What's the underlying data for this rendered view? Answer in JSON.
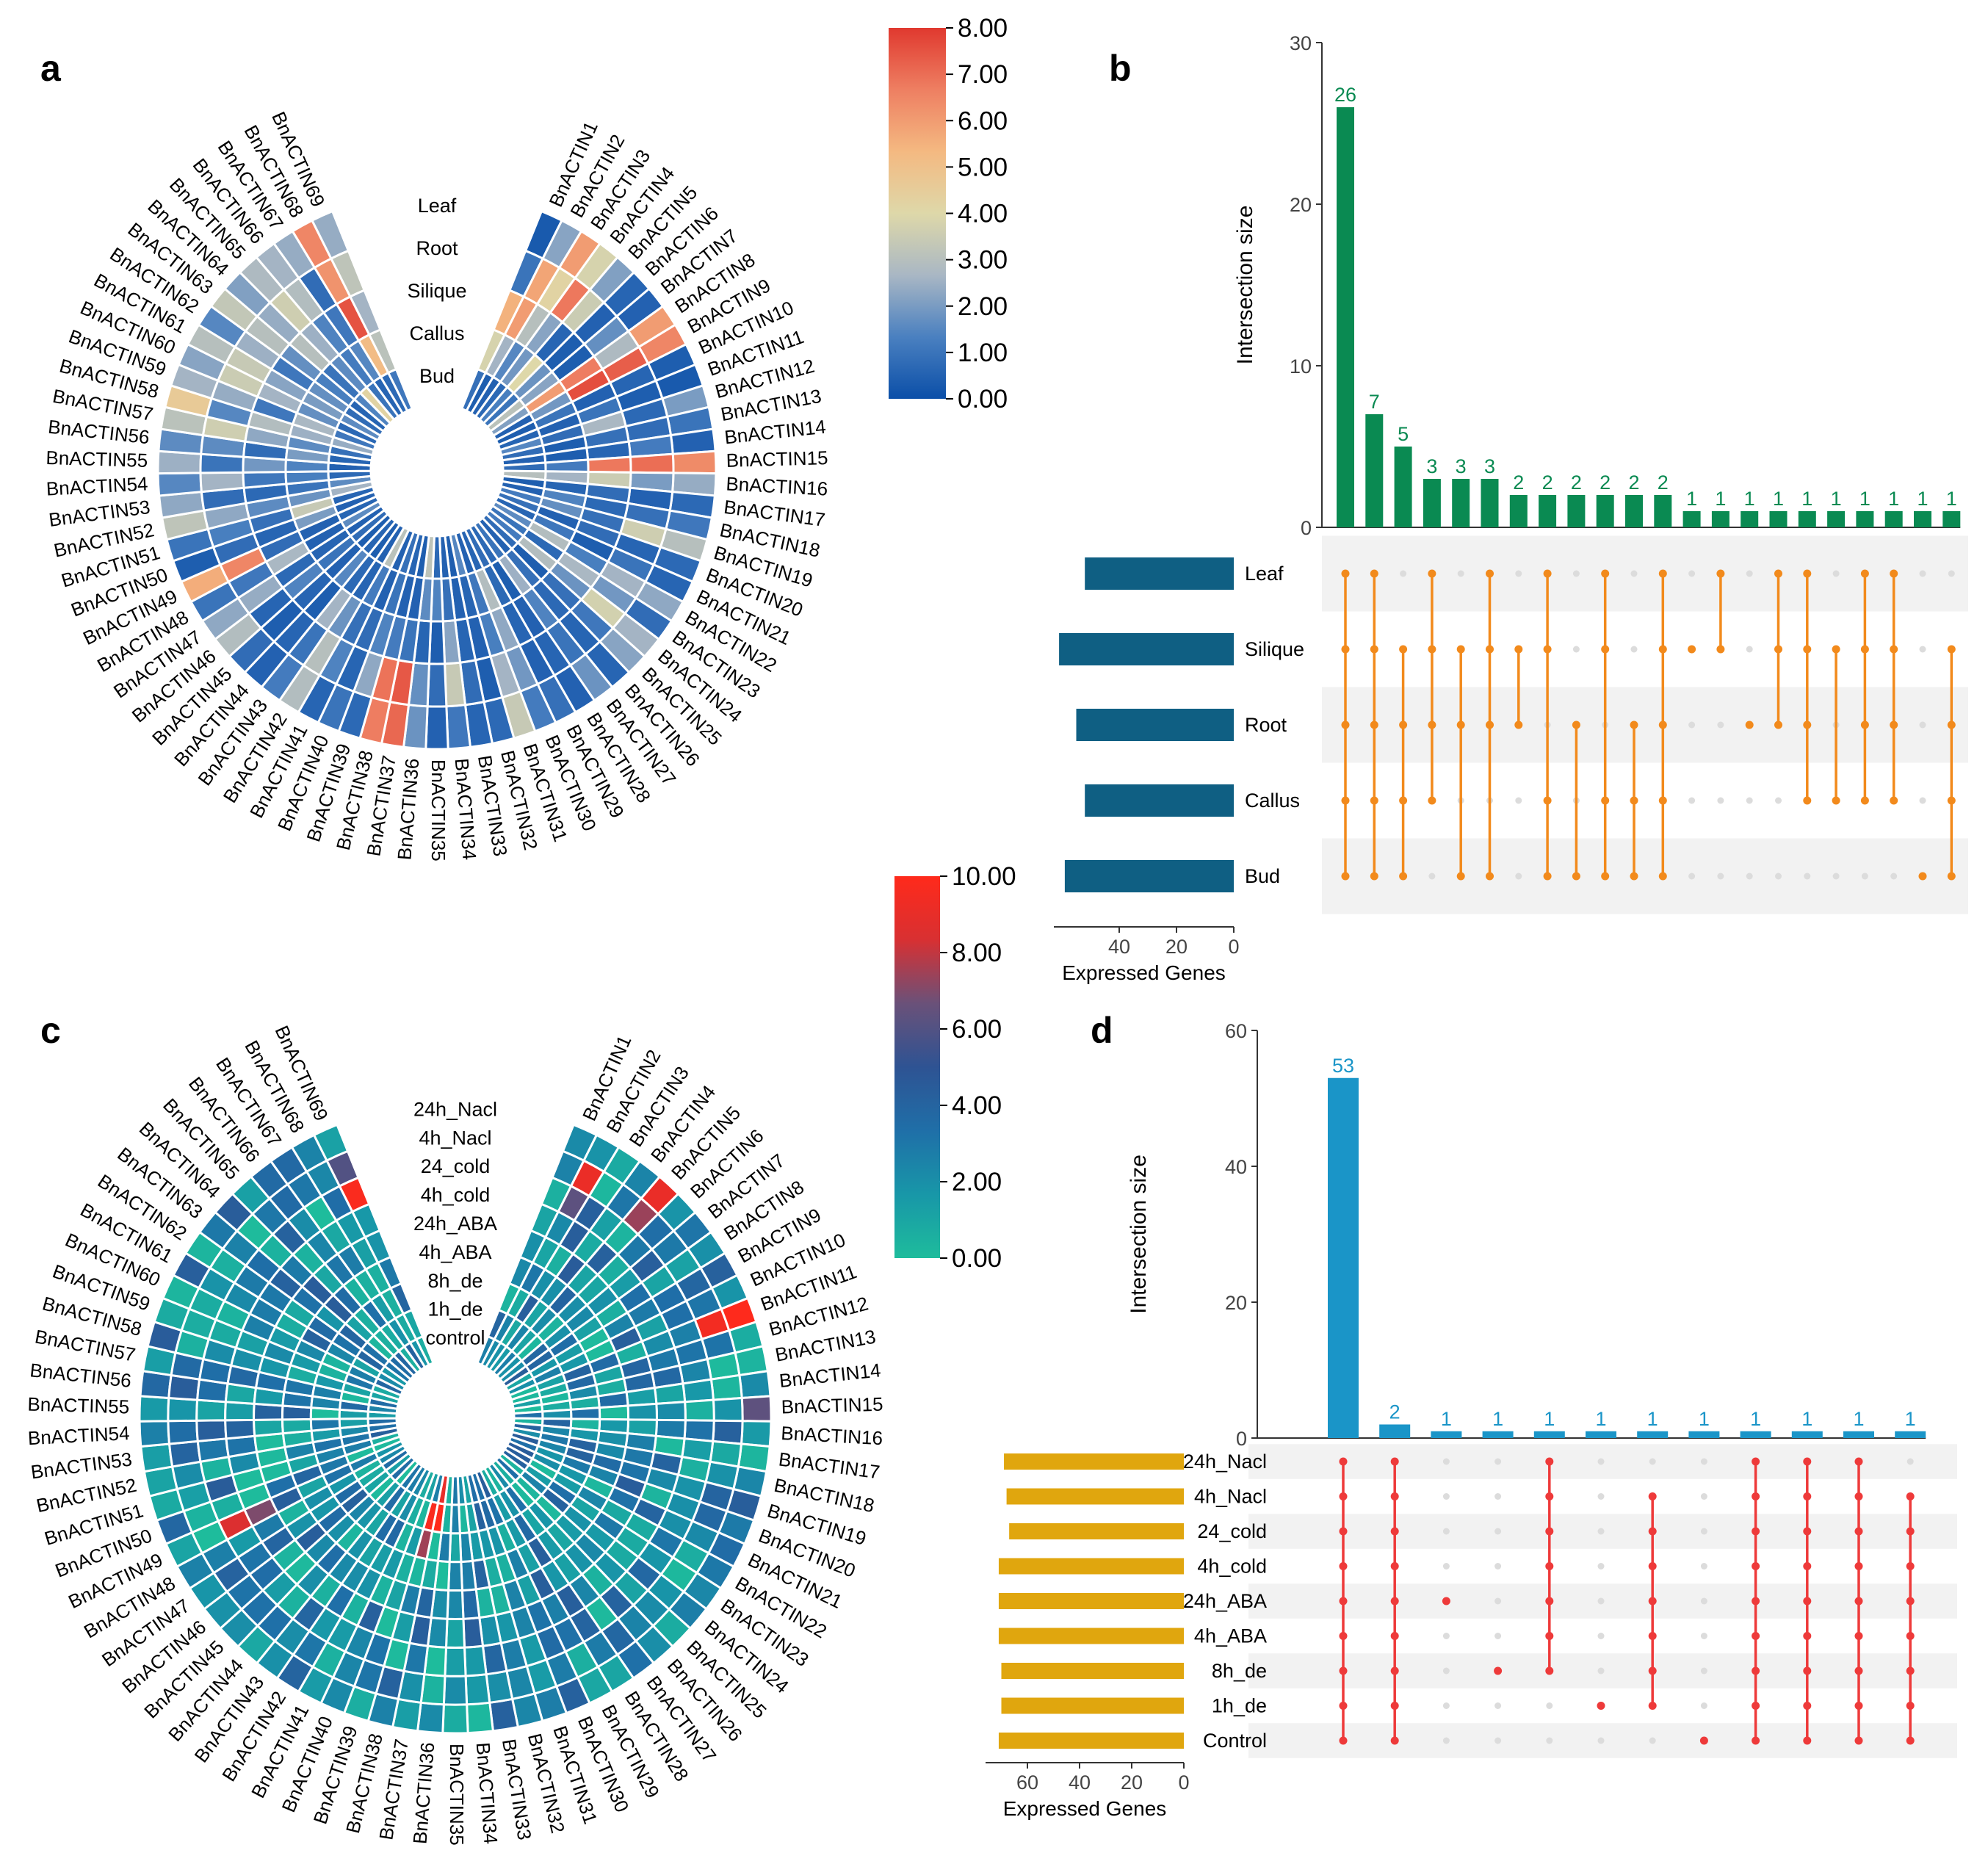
{
  "panel_letters": {
    "a": "a",
    "b": "b",
    "c": "c",
    "d": "d"
  },
  "chart_data": [
    {
      "panel": "a",
      "type": "heatmap",
      "layout": "circular",
      "title": "",
      "rows": [
        "Leaf",
        "Root",
        "Silique",
        "Callus",
        "Bud"
      ],
      "genes": [
        "BnACTIN1",
        "BnACTIN2",
        "BnACTIN3",
        "BnACTIN4",
        "BnACTIN5",
        "BnACTIN6",
        "BnACTIN7",
        "BnACTIN8",
        "BnACTIN9",
        "BnACTIN10",
        "BnACTIN11",
        "BnACTIN12",
        "BnACTIN13",
        "BnACTIN14",
        "BnACTIN15",
        "BnACTIN16",
        "BnACTIN17",
        "BnACTIN18",
        "BnACTIN19",
        "BnACTIN20",
        "BnACTIN21",
        "BnACTIN22",
        "BnACTIN23",
        "BnACTIN24",
        "BnACTIN25",
        "BnACTIN26",
        "BnACTIN27",
        "BnACTIN28",
        "BnACTIN29",
        "BnACTIN30",
        "BnACTIN31",
        "BnACTIN32",
        "BnACTIN33",
        "BnACTIN34",
        "BnACTIN35",
        "BnACTIN36",
        "BnACTIN37",
        "BnACTIN38",
        "BnACTIN39",
        "BnACTIN40",
        "BnACTIN41",
        "BnACTIN42",
        "BnACTIN43",
        "BnACTIN44",
        "BnACTIN45",
        "BnACTIN46",
        "BnACTIN47",
        "BnACTIN48",
        "BnACTIN49",
        "BnACTIN50",
        "BnACTIN51",
        "BnACTIN52",
        "BnACTIN53",
        "BnACTIN54",
        "BnACTIN55",
        "BnACTIN56",
        "BnACTIN57",
        "BnACTIN58",
        "BnACTIN59",
        "BnACTIN60",
        "BnACTIN61",
        "BnACTIN62",
        "BnACTIN63",
        "BnACTIN64",
        "BnACTIN65",
        "BnACTIN66",
        "BnACTIN67",
        "BnACTIN68",
        "BnACTIN69"
      ],
      "colorbar": {
        "min": 0,
        "max": 8,
        "ticks": [
          "8.00",
          "7.00",
          "6.00",
          "5.00",
          "4.00",
          "3.00",
          "2.00",
          "1.00",
          "0.00"
        ],
        "colors": [
          "#0b4fa8",
          "#4a80c0",
          "#a9b7c4",
          "#ded8a9",
          "#f4b981",
          "#ee7f62",
          "#e0392f"
        ]
      },
      "values": [
        [
          0.3,
          1.0,
          5.5,
          3.8,
          0.9
        ],
        [
          2.2,
          5.8,
          6.0,
          2.6,
          0.4
        ],
        [
          6.0,
          4.2,
          3.0,
          1.5,
          0.5
        ],
        [
          3.8,
          6.8,
          2.2,
          1.9,
          0.7
        ],
        [
          2.1,
          3.5,
          0.6,
          4.0,
          1.3
        ],
        [
          0.6,
          0.5,
          0.4,
          1.8,
          1.0
        ],
        [
          0.5,
          1.7,
          0.4,
          2.2,
          3.1
        ],
        [
          6.0,
          2.8,
          6.7,
          6.0,
          2.1
        ],
        [
          6.5,
          7.3,
          7.6,
          1.9,
          0.5
        ],
        [
          0.4,
          0.6,
          0.5,
          1.0,
          0.4
        ],
        [
          0.3,
          0.4,
          1.0,
          0.5,
          0.6
        ],
        [
          2.0,
          0.7,
          2.7,
          0.8,
          1.5
        ],
        [
          1.0,
          0.8,
          0.9,
          0.4,
          0.8
        ],
        [
          0.5,
          1.2,
          0.6,
          0.4,
          0.5
        ],
        [
          6.4,
          7.0,
          6.8,
          1.2,
          0.8
        ],
        [
          2.4,
          2.0,
          3.5,
          2.6,
          3.0
        ],
        [
          0.7,
          0.5,
          0.8,
          0.6,
          0.4
        ],
        [
          1.1,
          0.9,
          0.7,
          1.4,
          0.5
        ],
        [
          3.0,
          3.6,
          0.9,
          1.7,
          1.2
        ],
        [
          0.7,
          0.6,
          0.8,
          0.5,
          0.9
        ],
        [
          0.6,
          1.0,
          0.4,
          1.1,
          0.6
        ],
        [
          2.3,
          2.6,
          1.3,
          2.9,
          1.6
        ],
        [
          0.8,
          1.9,
          2.7,
          0.7,
          1.0
        ],
        [
          2.6,
          3.7,
          1.8,
          2.9,
          1.2
        ],
        [
          2.2,
          1.1,
          0.9,
          0.4,
          0.8
        ],
        [
          0.6,
          0.6,
          0.7,
          0.9,
          0.5
        ],
        [
          1.8,
          1.0,
          1.4,
          2.5,
          1.0
        ],
        [
          0.5,
          0.6,
          0.5,
          0.4,
          0.7
        ],
        [
          0.9,
          0.5,
          0.6,
          0.7,
          0.8
        ],
        [
          1.2,
          1.9,
          2.3,
          2.9,
          0.6
        ],
        [
          3.4,
          2.6,
          1.3,
          1.1,
          0.5
        ],
        [
          0.7,
          0.4,
          0.5,
          0.6,
          1.5
        ],
        [
          0.6,
          0.8,
          0.6,
          0.5,
          0.4
        ],
        [
          1.1,
          3.4,
          2.2,
          0.9,
          0.5
        ],
        [
          0.5,
          0.8,
          0.4,
          1.4,
          0.7
        ],
        [
          1.8,
          1.7,
          0.6,
          1.6,
          3.2
        ],
        [
          7.1,
          7.4,
          1.0,
          0.5,
          0.4
        ],
        [
          6.7,
          6.9,
          1.2,
          0.5,
          0.6
        ],
        [
          0.7,
          2.3,
          1.4,
          1.0,
          0.9
        ],
        [
          1.0,
          0.6,
          0.8,
          0.5,
          0.5
        ],
        [
          0.6,
          1.4,
          0.9,
          1.2,
          3.1
        ],
        [
          2.9,
          3.0,
          1.8,
          0.6,
          0.5
        ],
        [
          1.2,
          1.0,
          2.6,
          0.7,
          0.4
        ],
        [
          0.5,
          0.6,
          0.4,
          1.5,
          0.6
        ],
        [
          0.8,
          0.4,
          0.6,
          0.5,
          0.4
        ],
        [
          2.9,
          0.6,
          1.4,
          1.0,
          0.8
        ],
        [
          2.3,
          2.4,
          0.7,
          0.6,
          0.5
        ],
        [
          1.0,
          1.1,
          2.7,
          0.5,
          1.6
        ],
        [
          5.6,
          6.5,
          0.8,
          0.5,
          0.6
        ],
        [
          0.4,
          0.8,
          0.6,
          2.0,
          0.5
        ],
        [
          1.0,
          1.3,
          0.9,
          3.4,
          0.6
        ],
        [
          3.2,
          2.3,
          1.6,
          1.8,
          2.6
        ],
        [
          2.3,
          0.8,
          0.7,
          1.0,
          1.6
        ],
        [
          1.5,
          2.6,
          1.1,
          1.3,
          0.7
        ],
        [
          2.5,
          1.0,
          1.9,
          1.4,
          0.5
        ],
        [
          1.6,
          1.6,
          0.8,
          2.0,
          0.6
        ],
        [
          3.1,
          3.6,
          2.3,
          1.6,
          0.9
        ],
        [
          4.6,
          1.5,
          2.9,
          2.5,
          2.4
        ],
        [
          2.6,
          2.4,
          1.1,
          2.7,
          1.1
        ],
        [
          2.2,
          3.5,
          2.6,
          1.7,
          0.7
        ],
        [
          3.0,
          3.4,
          2.2,
          2.0,
          1.6
        ],
        [
          1.5,
          2.5,
          1.1,
          1.7,
          0.8
        ],
        [
          3.3,
          3.0,
          1.7,
          1.3,
          0.6
        ],
        [
          2.1,
          2.4,
          3.0,
          1.0,
          1.4
        ],
        [
          2.8,
          3.6,
          2.5,
          1.6,
          4.2
        ],
        [
          2.6,
          2.9,
          1.4,
          1.2,
          1.0
        ],
        [
          2.4,
          0.8,
          1.1,
          1.5,
          0.6
        ],
        [
          6.5,
          6.2,
          7.5,
          5.2,
          0.7
        ],
        [
          2.4,
          3.2,
          2.6,
          3.1,
          1.1
        ]
      ]
    },
    {
      "panel": "b",
      "type": "bar",
      "subtype": "upset",
      "title": "",
      "ylabel": "Intersection size",
      "ylim": [
        0,
        30
      ],
      "yticks": [
        "0",
        "10",
        "20",
        "30"
      ],
      "values": [
        26,
        7,
        5,
        3,
        3,
        3,
        2,
        2,
        2,
        2,
        2,
        2,
        1,
        1,
        1,
        1,
        1,
        1,
        1,
        1,
        1,
        1
      ],
      "bar_color": "#0a8a52",
      "sets": [
        "Leaf",
        "Silique",
        "Root",
        "Callus",
        "Bud"
      ],
      "set_sizes": [
        52,
        61,
        55,
        52,
        59
      ],
      "set_xlabel": "Expressed Genes",
      "set_xticks": [
        "40",
        "20",
        "0"
      ],
      "set_bar_color": "#0f5f83",
      "dot_color": "#f28a1c",
      "matrix": [
        [
          "Leaf",
          "Silique",
          "Root",
          "Callus",
          "Bud"
        ],
        [
          "Leaf",
          "Silique",
          "Root",
          "Callus",
          "Bud"
        ],
        [
          "Silique",
          "Root",
          "Callus",
          "Bud"
        ],
        [
          "Leaf",
          "Silique",
          "Root",
          "Callus"
        ],
        [
          "Silique",
          "Root",
          "Bud"
        ],
        [
          "Leaf",
          "Silique",
          "Root",
          "Bud"
        ],
        [
          "Silique",
          "Root"
        ],
        [
          "Leaf",
          "Silique",
          "Callus",
          "Bud"
        ],
        [
          "Root",
          "Bud"
        ],
        [
          "Leaf",
          "Silique",
          "Callus",
          "Bud"
        ],
        [
          "Root",
          "Callus",
          "Bud"
        ],
        [
          "Leaf",
          "Silique",
          "Root",
          "Callus",
          "Bud"
        ],
        [
          "Silique"
        ],
        [
          "Leaf",
          "Silique"
        ],
        [
          "Root"
        ],
        [
          "Leaf",
          "Silique",
          "Root"
        ],
        [
          "Leaf",
          "Silique",
          "Root",
          "Callus"
        ],
        [
          "Silique",
          "Callus"
        ],
        [
          "Leaf",
          "Silique",
          "Root",
          "Callus"
        ],
        [
          "Leaf",
          "Silique",
          "Root",
          "Callus"
        ],
        [
          "Bud"
        ],
        [
          "Silique",
          "Root",
          "Callus",
          "Bud"
        ]
      ]
    },
    {
      "panel": "c",
      "type": "heatmap",
      "layout": "circular",
      "title": "",
      "rows": [
        "24h_Nacl",
        "4h_Nacl",
        "24_cold",
        "4h_cold",
        "24h_ABA",
        "4h_ABA",
        "8h_de",
        "1h_de",
        "control"
      ],
      "genes_ref": "same as panel a",
      "colorbar": {
        "min": 0,
        "max": 10,
        "ticks": [
          "10.00",
          "8.00",
          "6.00",
          "4.00",
          "2.00",
          "0.00"
        ],
        "colors": [
          "#1ebc9c",
          "#1897a8",
          "#1f6fa8",
          "#2e5393",
          "#6a5179",
          "#d83032",
          "#ff2a1b"
        ]
      },
      "seed": 7
    },
    {
      "panel": "d",
      "type": "bar",
      "subtype": "upset",
      "title": "",
      "ylabel": "Intersection size",
      "ylim": [
        0,
        60
      ],
      "yticks": [
        "0",
        "20",
        "40",
        "60"
      ],
      "values": [
        53,
        2,
        1,
        1,
        1,
        1,
        1,
        1,
        1,
        1,
        1,
        1
      ],
      "bar_color": "#1a95c8",
      "sets": [
        "24h_Nacl",
        "4h_Nacl",
        "24_cold",
        "4h_cold",
        "24h_ABA",
        "4h_ABA",
        "8h_de",
        "1h_de",
        "Control"
      ],
      "set_sizes": [
        69,
        68,
        67,
        71,
        71,
        71,
        70,
        70,
        71
      ],
      "set_xlabel": "Expressed Genes",
      "set_xticks": [
        "60",
        "40",
        "20",
        "0"
      ],
      "set_bar_color": "#e0a60e",
      "dot_color": "#ee3a3a",
      "matrix": [
        [
          "24h_Nacl",
          "4h_Nacl",
          "24_cold",
          "4h_cold",
          "24h_ABA",
          "4h_ABA",
          "8h_de",
          "1h_de",
          "Control"
        ],
        [
          "24h_Nacl",
          "4h_Nacl",
          "24_cold",
          "4h_cold",
          "24h_ABA",
          "4h_ABA",
          "8h_de",
          "1h_de",
          "Control"
        ],
        [
          "24h_ABA"
        ],
        [
          "8h_de"
        ],
        [
          "24h_Nacl",
          "4h_Nacl",
          "24_cold",
          "4h_cold",
          "24h_ABA",
          "4h_ABA",
          "8h_de"
        ],
        [
          "1h_de"
        ],
        [
          "4h_Nacl",
          "24_cold",
          "4h_cold",
          "24h_ABA",
          "4h_ABA",
          "8h_de",
          "1h_de"
        ],
        [
          "Control"
        ],
        [
          "24h_Nacl",
          "4h_Nacl",
          "24_cold",
          "4h_cold",
          "24h_ABA",
          "4h_ABA",
          "8h_de",
          "1h_de",
          "Control"
        ],
        [
          "24h_Nacl",
          "4h_Nacl",
          "24_cold",
          "4h_cold",
          "24h_ABA",
          "4h_ABA",
          "8h_de",
          "1h_de",
          "Control"
        ],
        [
          "24h_Nacl",
          "4h_Nacl",
          "24_cold",
          "4h_cold",
          "24h_ABA",
          "4h_ABA",
          "8h_de",
          "1h_de",
          "Control"
        ],
        [
          "4h_Nacl",
          "24_cold",
          "4h_cold",
          "24h_ABA",
          "4h_ABA",
          "8h_de",
          "1h_de",
          "Control"
        ]
      ]
    }
  ]
}
